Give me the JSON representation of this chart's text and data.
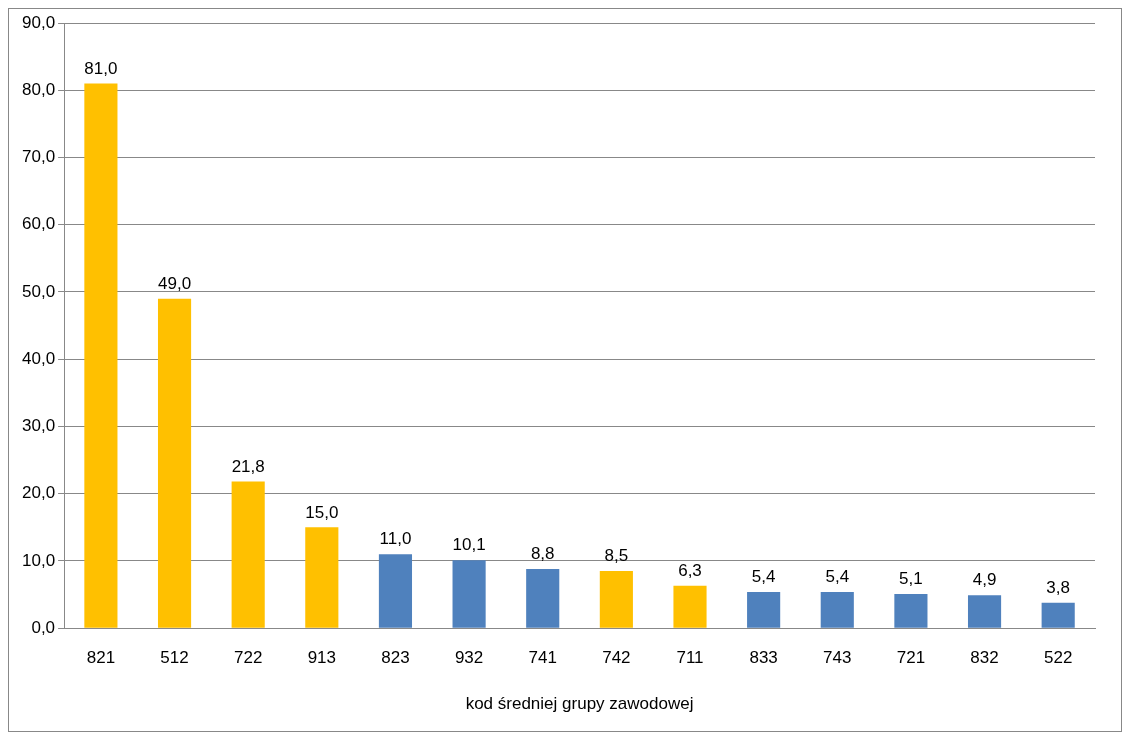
{
  "chart_data": {
    "type": "bar",
    "xlabel": "kod średniej grupy zawodowej",
    "categories": [
      "821",
      "512",
      "722",
      "913",
      "823",
      "932",
      "741",
      "742",
      "711",
      "833",
      "743",
      "721",
      "832",
      "522"
    ],
    "values": [
      81.0,
      49.0,
      21.8,
      15.0,
      11.0,
      10.1,
      8.8,
      8.5,
      6.3,
      5.4,
      5.4,
      5.1,
      4.9,
      3.8
    ],
    "colors": [
      "#ffc000",
      "#ffc000",
      "#ffc000",
      "#ffc000",
      "#4f81bd",
      "#4f81bd",
      "#4f81bd",
      "#ffc000",
      "#ffc000",
      "#4f81bd",
      "#4f81bd",
      "#4f81bd",
      "#4f81bd",
      "#4f81bd"
    ],
    "value_labels": [
      "81,0",
      "49,0",
      "21,8",
      "15,0",
      "11,0",
      "10,1",
      "8,8",
      "8,5",
      "6,3",
      "5,4",
      "5,4",
      "5,1",
      "4,9",
      "3,8"
    ],
    "ylim": [
      0,
      90
    ],
    "yticks": [
      {
        "value": 0,
        "label": "0,0"
      },
      {
        "value": 10,
        "label": "10,0"
      },
      {
        "value": 20,
        "label": "20,0"
      },
      {
        "value": 30,
        "label": "30,0"
      },
      {
        "value": 40,
        "label": "40,0"
      },
      {
        "value": 50,
        "label": "50,0"
      },
      {
        "value": 60,
        "label": "60,0"
      },
      {
        "value": 70,
        "label": "70,0"
      },
      {
        "value": 80,
        "label": "80,0"
      },
      {
        "value": 90,
        "label": "90,0"
      }
    ],
    "grid": "y"
  }
}
